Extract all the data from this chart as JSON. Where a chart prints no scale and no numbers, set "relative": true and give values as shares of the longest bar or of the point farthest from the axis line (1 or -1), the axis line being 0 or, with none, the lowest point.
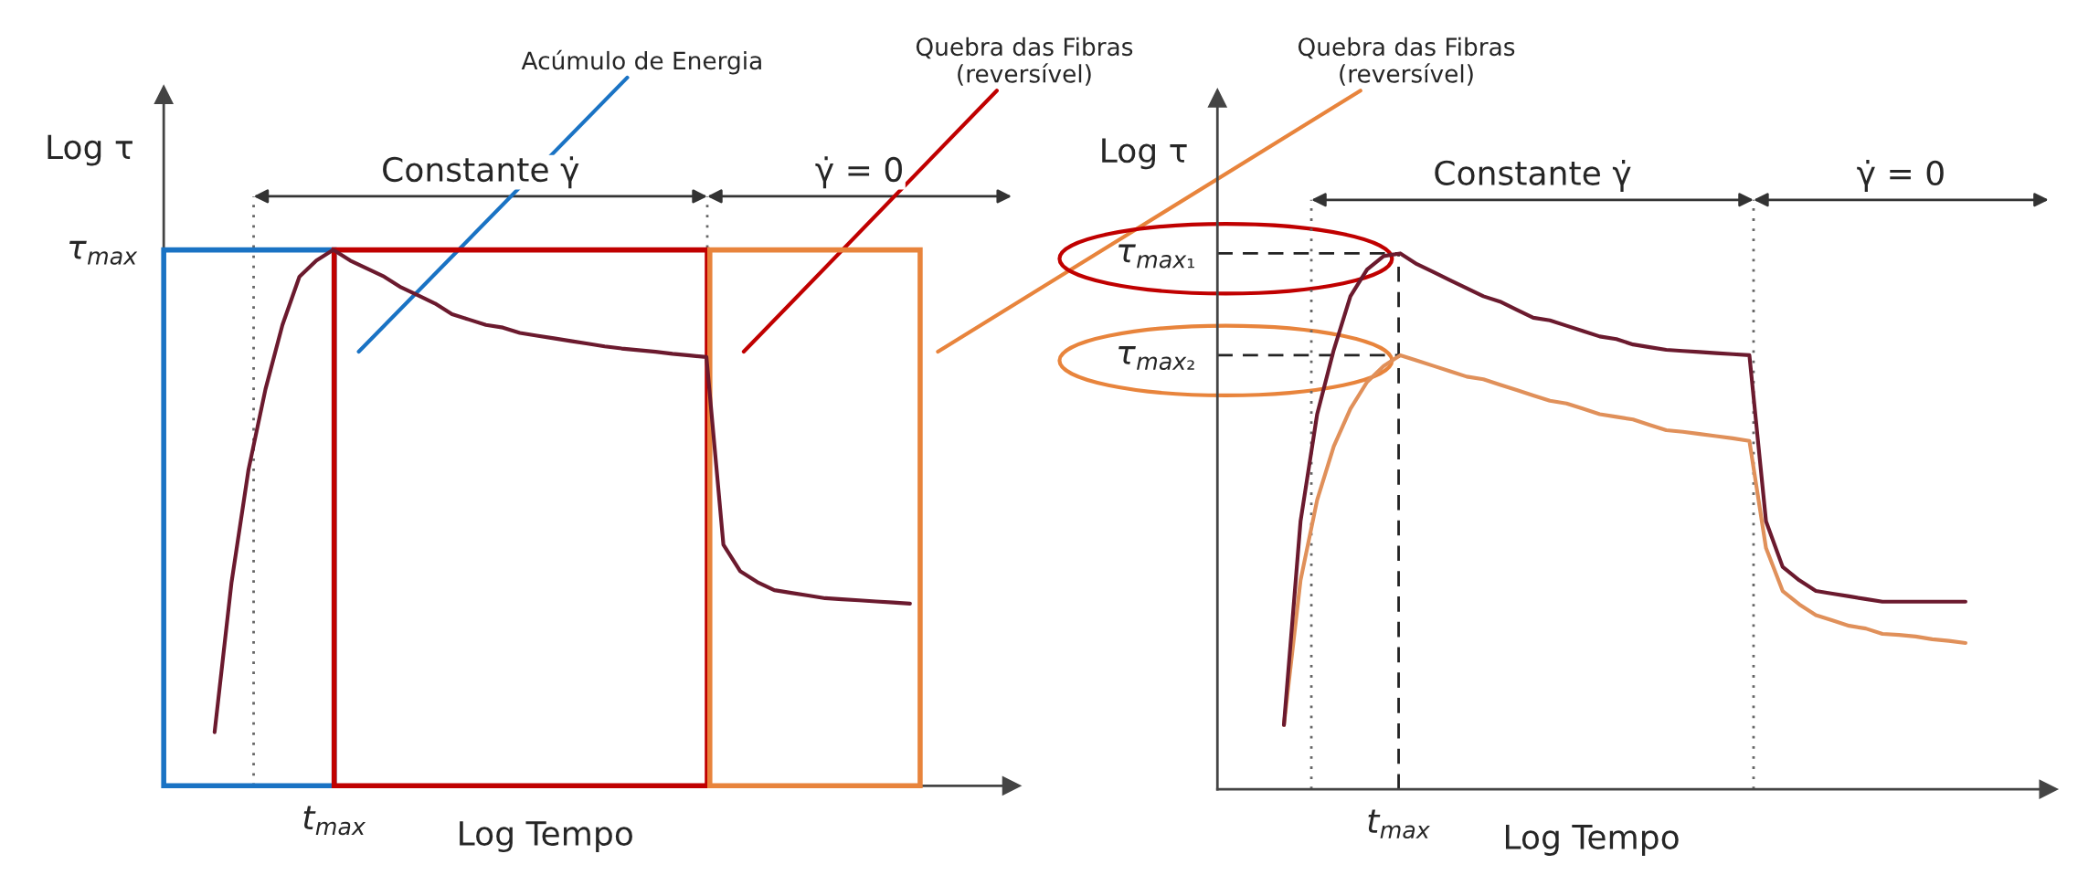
{
  "chart_data": [
    {
      "type": "line",
      "relative": true,
      "xlabel": "Log Tempo",
      "ylabel": "Log τ",
      "categories": [
        null,
        null,
        null,
        null,
        null,
        null,
        null,
        null,
        null,
        null,
        null,
        null,
        null,
        null,
        null,
        null,
        null,
        null,
        null,
        null,
        null,
        null,
        null,
        null,
        null,
        null,
        null,
        null,
        null,
        null,
        null,
        null,
        null,
        null,
        null,
        null,
        null,
        null,
        null,
        null,
        null,
        null,
        null,
        null,
        null,
        null,
        null,
        null,
        null,
        null,
        null
      ],
      "series": [
        {
          "color": "#6b1a2e",
          "values": [
            null,
            null,
            null,
            0.1,
            0.38,
            0.59,
            0.74,
            0.86,
            0.95,
            0.98,
            1.0,
            0.98,
            0.965,
            0.95,
            0.93,
            0.915,
            0.9,
            0.88,
            0.87,
            0.86,
            0.855,
            0.845,
            0.84,
            0.835,
            0.83,
            0.825,
            0.82,
            0.816,
            0.813,
            0.81,
            0.806,
            0.803,
            0.8,
            0.45,
            0.4,
            0.38,
            0.365,
            0.36,
            0.355,
            0.35,
            0.348,
            0.346,
            0.344,
            0.342,
            0.34,
            null,
            null,
            null,
            null,
            null,
            null
          ]
        }
      ],
      "annotations": [
        "τ$_{max}$",
        "t$_{max}$",
        "Constante γ̇",
        "γ̇ = 0",
        "Acúmulo de Energia",
        "Quebra das Fibras\n(reversível)",
        "Quebra das Fibras\n(reversível)"
      ]
    },
    {
      "type": "line",
      "relative": true,
      "xlabel": "Log Tempo",
      "ylabel": "Log τ",
      "categories": [
        null,
        null,
        null,
        null,
        null,
        null,
        null,
        null,
        null,
        null,
        null,
        null,
        null,
        null,
        null,
        null,
        null,
        null,
        null,
        null,
        null,
        null,
        null,
        null,
        null,
        null,
        null,
        null,
        null,
        null,
        null,
        null,
        null,
        null,
        null,
        null,
        null,
        null,
        null,
        null,
        null,
        null,
        null,
        null,
        null,
        null,
        null,
        null,
        null,
        null,
        null
      ],
      "series": [
        {
          "color": "#6b1a2e",
          "values": [
            null,
            null,
            null,
            null,
            0.12,
            0.5,
            0.7,
            0.82,
            0.92,
            0.97,
            0.995,
            1.0,
            0.98,
            0.965,
            0.95,
            0.935,
            0.92,
            0.91,
            0.895,
            0.88,
            0.875,
            0.865,
            0.855,
            0.845,
            0.84,
            0.83,
            0.825,
            0.82,
            0.818,
            0.816,
            0.814,
            0.812,
            0.81,
            0.5,
            0.415,
            0.39,
            0.37,
            0.365,
            0.36,
            0.355,
            0.35,
            0.35,
            0.35,
            0.35,
            0.35,
            0.35,
            null,
            null,
            null,
            null,
            null
          ]
        },
        {
          "color": "#e0905a",
          "values": [
            null,
            null,
            null,
            null,
            0.12,
            0.39,
            0.54,
            0.64,
            0.71,
            0.76,
            0.79,
            0.81,
            0.8,
            0.79,
            0.78,
            0.77,
            0.765,
            0.755,
            0.745,
            0.735,
            0.725,
            0.72,
            0.71,
            0.7,
            0.695,
            0.69,
            0.68,
            0.67,
            0.667,
            0.663,
            0.659,
            0.655,
            0.65,
            0.45,
            0.37,
            0.345,
            0.325,
            0.315,
            0.305,
            0.3,
            0.29,
            0.288,
            0.285,
            0.28,
            0.277,
            0.273,
            null,
            null,
            null,
            null,
            null
          ]
        }
      ],
      "ref_lines": [
        {
          "axis": "y",
          "value": 1.0,
          "label": "τ$_{max₁}$",
          "line_style": "dashed"
        },
        {
          "axis": "y",
          "value": 0.81,
          "label": "τ$_{max₂}$",
          "line_style": "dashed"
        }
      ],
      "annotations": [
        "t$_{max}$",
        "Constante γ̇",
        "γ̇ = 0"
      ]
    }
  ]
}
